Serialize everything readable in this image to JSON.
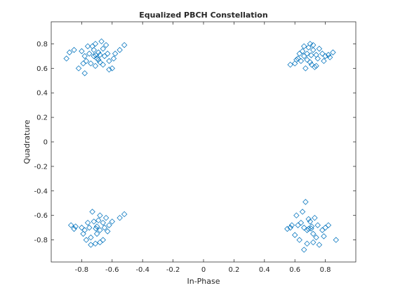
{
  "chart_data": {
    "type": "scatter",
    "title": "Equalized PBCH Constellation",
    "xlabel": "In-Phase",
    "ylabel": "Quadrature",
    "xlim": [
      -1.0,
      1.0
    ],
    "ylim": [
      -0.98,
      0.98
    ],
    "xticks": [
      -0.8,
      -0.6,
      -0.4,
      -0.2,
      0,
      0.2,
      0.4,
      0.6,
      0.8
    ],
    "xtick_labels": [
      "-0.8",
      "-0.6",
      "-0.4",
      "-0.2",
      "0",
      "0.2",
      "0.4",
      "0.6",
      "0.8"
    ],
    "yticks": [
      -0.8,
      -0.6,
      -0.4,
      -0.2,
      0,
      0.2,
      0.4,
      0.6,
      0.8
    ],
    "ytick_labels": [
      "-0.8",
      "-0.6",
      "-0.4",
      "-0.2",
      "0",
      "0.2",
      "0.4",
      "0.6",
      "0.8"
    ],
    "grid": false,
    "marker": "square",
    "marker_color": "#0072BD",
    "series": [
      {
        "points": [
          [
            -0.707,
            0.707
          ],
          [
            -0.75,
            0.72
          ],
          [
            -0.68,
            0.65
          ],
          [
            -0.72,
            0.75
          ],
          [
            -0.65,
            0.7
          ],
          [
            -0.7,
            0.68
          ],
          [
            -0.78,
            0.7
          ],
          [
            -0.66,
            0.76
          ],
          [
            -0.74,
            0.64
          ],
          [
            -0.69,
            0.73
          ],
          [
            -0.62,
            0.66
          ],
          [
            -0.8,
            0.74
          ],
          [
            -0.85,
            0.75
          ],
          [
            -0.88,
            0.73
          ],
          [
            -0.9,
            0.68
          ],
          [
            -0.82,
            0.6
          ],
          [
            -0.78,
            0.56
          ],
          [
            -0.6,
            0.6
          ],
          [
            -0.62,
            0.59
          ],
          [
            -0.55,
            0.75
          ],
          [
            -0.52,
            0.79
          ],
          [
            -0.67,
            0.82
          ],
          [
            -0.71,
            0.8
          ],
          [
            -0.73,
            0.78
          ],
          [
            -0.64,
            0.79
          ],
          [
            -0.77,
            0.66
          ],
          [
            -0.71,
            0.62
          ],
          [
            -0.66,
            0.63
          ],
          [
            -0.63,
            0.72
          ],
          [
            -0.59,
            0.68
          ],
          [
            -0.58,
            0.72
          ],
          [
            -0.76,
            0.78
          ],
          [
            -0.79,
            0.64
          ],
          [
            -0.69,
            0.67
          ],
          [
            -0.72,
            0.7
          ],
          [
            -0.68,
            0.71
          ],
          [
            0.707,
            0.707
          ],
          [
            0.68,
            0.72
          ],
          [
            0.75,
            0.68
          ],
          [
            0.72,
            0.75
          ],
          [
            0.66,
            0.7
          ],
          [
            0.7,
            0.65
          ],
          [
            0.78,
            0.72
          ],
          [
            0.64,
            0.66
          ],
          [
            0.74,
            0.62
          ],
          [
            0.69,
            0.77
          ],
          [
            0.62,
            0.68
          ],
          [
            0.8,
            0.7
          ],
          [
            0.82,
            0.71
          ],
          [
            0.85,
            0.73
          ],
          [
            0.83,
            0.69
          ],
          [
            0.6,
            0.64
          ],
          [
            0.57,
            0.63
          ],
          [
            0.61,
            0.67
          ],
          [
            0.7,
            0.8
          ],
          [
            0.66,
            0.78
          ],
          [
            0.72,
            0.79
          ],
          [
            0.73,
            0.61
          ],
          [
            0.67,
            0.6
          ],
          [
            0.71,
            0.63
          ],
          [
            0.76,
            0.76
          ],
          [
            0.65,
            0.74
          ],
          [
            0.63,
            0.72
          ],
          [
            0.79,
            0.66
          ],
          [
            0.68,
            0.67
          ],
          [
            0.74,
            0.71
          ],
          [
            -0.707,
            -0.707
          ],
          [
            -0.75,
            -0.7
          ],
          [
            -0.68,
            -0.72
          ],
          [
            -0.72,
            -0.65
          ],
          [
            -0.65,
            -0.7
          ],
          [
            -0.7,
            -0.75
          ],
          [
            -0.78,
            -0.72
          ],
          [
            -0.66,
            -0.66
          ],
          [
            -0.74,
            -0.78
          ],
          [
            -0.69,
            -0.64
          ],
          [
            -0.62,
            -0.68
          ],
          [
            -0.8,
            -0.7
          ],
          [
            -0.84,
            -0.69
          ],
          [
            -0.87,
            -0.68
          ],
          [
            -0.85,
            -0.71
          ],
          [
            -0.73,
            -0.57
          ],
          [
            -0.68,
            -0.6
          ],
          [
            -0.55,
            -0.62
          ],
          [
            -0.52,
            -0.59
          ],
          [
            -0.6,
            -0.65
          ],
          [
            -0.63,
            -0.73
          ],
          [
            -0.77,
            -0.8
          ],
          [
            -0.74,
            -0.84
          ],
          [
            -0.71,
            -0.83
          ],
          [
            -0.68,
            -0.82
          ],
          [
            -0.66,
            -0.8
          ],
          [
            -0.79,
            -0.75
          ],
          [
            -0.64,
            -0.62
          ],
          [
            -0.76,
            -0.66
          ],
          [
            -0.7,
            -0.69
          ],
          [
            0.707,
            -0.707
          ],
          [
            0.68,
            -0.72
          ],
          [
            0.75,
            -0.68
          ],
          [
            0.72,
            -0.75
          ],
          [
            0.66,
            -0.7
          ],
          [
            0.7,
            -0.65
          ],
          [
            0.78,
            -0.72
          ],
          [
            0.64,
            -0.66
          ],
          [
            0.74,
            -0.78
          ],
          [
            0.69,
            -0.63
          ],
          [
            0.62,
            -0.68
          ],
          [
            0.8,
            -0.7
          ],
          [
            0.82,
            -0.68
          ],
          [
            0.87,
            -0.8
          ],
          [
            0.67,
            -0.49
          ],
          [
            0.61,
            -0.6
          ],
          [
            0.65,
            -0.57
          ],
          [
            0.57,
            -0.7
          ],
          [
            0.55,
            -0.71
          ],
          [
            0.58,
            -0.68
          ],
          [
            0.6,
            -0.76
          ],
          [
            0.63,
            -0.8
          ],
          [
            0.68,
            -0.83
          ],
          [
            0.66,
            -0.88
          ],
          [
            0.72,
            -0.82
          ],
          [
            0.76,
            -0.84
          ],
          [
            0.79,
            -0.77
          ],
          [
            0.73,
            -0.62
          ],
          [
            0.71,
            -0.69
          ],
          [
            0.69,
            -0.71
          ]
        ]
      }
    ]
  }
}
